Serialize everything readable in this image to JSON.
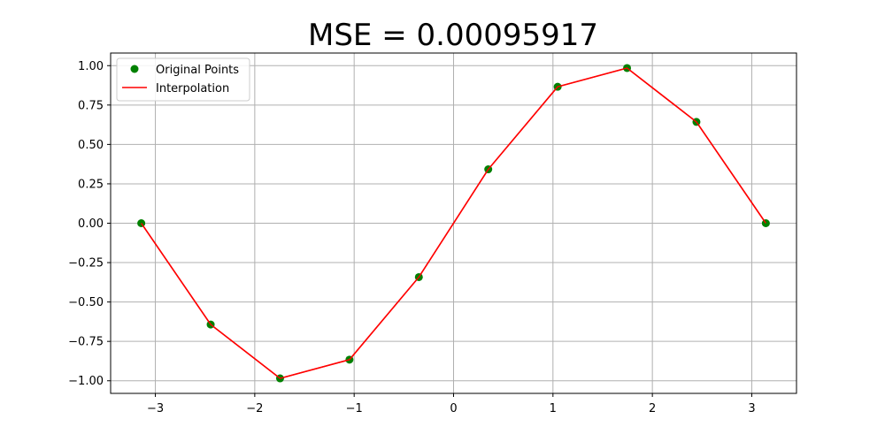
{
  "chart_data": {
    "type": "line",
    "title": "MSE = 0.00095917",
    "xlabel": "",
    "ylabel": "",
    "xlim": [
      -3.45,
      3.45
    ],
    "ylim": [
      -1.08,
      1.08
    ],
    "grid": true,
    "legend_position": "top-left",
    "x_ticks": [
      -3,
      -2,
      -1,
      0,
      1,
      2,
      3
    ],
    "x_tick_labels": [
      "−3",
      "−2",
      "−1",
      "0",
      "1",
      "2",
      "3"
    ],
    "y_ticks": [
      -1.0,
      -0.75,
      -0.5,
      -0.25,
      0.0,
      0.25,
      0.5,
      0.75,
      1.0
    ],
    "y_tick_labels": [
      "−1.00",
      "−0.75",
      "−0.50",
      "−0.25",
      "0.00",
      "0.25",
      "0.50",
      "0.75",
      "1.00"
    ],
    "series": [
      {
        "name": "Original Points",
        "kind": "scatter",
        "color": "#008000",
        "x": [
          -3.14159,
          -2.44346,
          -1.74533,
          -1.0472,
          -0.34907,
          0.34907,
          1.0472,
          1.74533,
          2.44346,
          3.14159
        ],
        "y": [
          0.0,
          -0.64279,
          -0.98481,
          -0.86603,
          -0.34202,
          0.34202,
          0.86603,
          0.98481,
          0.64279,
          0.0
        ]
      },
      {
        "name": "Interpolation",
        "kind": "line",
        "color": "#ff0000",
        "x": [
          -3.14159,
          -2.44346,
          -1.74533,
          -1.0472,
          -0.34907,
          0.34907,
          1.0472,
          1.74533,
          2.44346,
          3.14159
        ],
        "y": [
          0.0,
          -0.64279,
          -0.98481,
          -0.86603,
          -0.34202,
          0.34202,
          0.86603,
          0.98481,
          0.64279,
          0.0
        ]
      }
    ]
  }
}
